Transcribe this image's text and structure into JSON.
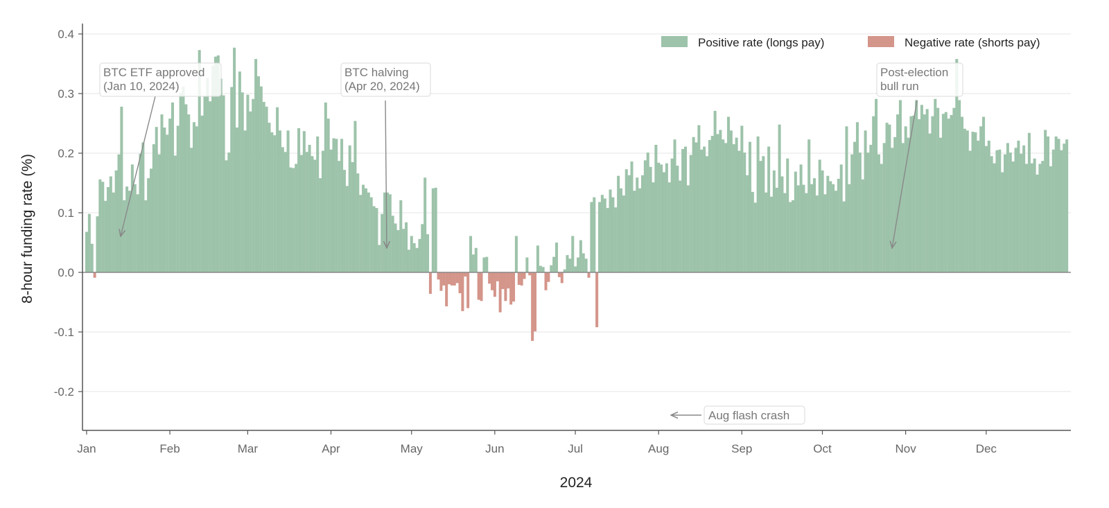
{
  "chart_data": {
    "type": "bar",
    "title": "",
    "xlabel": "2024",
    "ylabel": "8-hour funding rate (%)",
    "ylim": [
      -0.26,
      0.41
    ],
    "yticks": [
      -0.2,
      -0.1,
      0.0,
      0.1,
      0.2,
      0.3,
      0.4
    ],
    "ytick_labels": [
      "-0.2",
      "-0.1",
      "0.0",
      "0.1",
      "0.2",
      "0.3",
      "0.4"
    ],
    "xlim": [
      "2024-01-01",
      "2024-12-31"
    ],
    "xticks": [
      {
        "date": "2024-01-01",
        "label": "Jan"
      },
      {
        "date": "2024-02-01",
        "label": "Feb"
      },
      {
        "date": "2024-03-01",
        "label": "Mar"
      },
      {
        "date": "2024-04-01",
        "label": "Apr"
      },
      {
        "date": "2024-05-01",
        "label": "May"
      },
      {
        "date": "2024-06-01",
        "label": "Jun"
      },
      {
        "date": "2024-07-01",
        "label": "Jul"
      },
      {
        "date": "2024-08-01",
        "label": "Aug"
      },
      {
        "date": "2024-09-01",
        "label": "Sep"
      },
      {
        "date": "2024-10-01",
        "label": "Oct"
      },
      {
        "date": "2024-11-01",
        "label": "Nov"
      },
      {
        "date": "2024-12-01",
        "label": "Dec"
      }
    ],
    "grid": "horizontal",
    "legend_position": "top-right",
    "series": [
      {
        "name": "Positive rate (longs pay)",
        "color": "#9dc3aa"
      },
      {
        "name": "Negative rate (shorts pay)",
        "color": "#d4958a"
      }
    ],
    "segments": [
      {
        "start": "2024-01-01",
        "end": "2024-01-31",
        "values": [
          0.068,
          0.098,
          0.048,
          -0.009,
          0.094,
          0.156,
          0.152,
          0.12,
          0.143,
          0.161,
          0.134,
          0.171,
          0.198,
          0.278,
          0.121,
          0.144,
          0.137,
          0.181,
          0.148,
          0.131,
          0.199,
          0.218,
          0.121,
          0.158,
          0.174,
          0.215,
          0.244,
          0.198,
          0.265,
          0.243,
          0.231
        ]
      },
      {
        "start": "2024-02-01",
        "end": "2024-02-29",
        "values": [
          0.258,
          0.285,
          0.196,
          0.246,
          0.301,
          0.312,
          0.282,
          0.265,
          0.209,
          0.252,
          0.245,
          0.373,
          0.263,
          0.296,
          0.326,
          0.287,
          0.347,
          0.362,
          0.364,
          0.325,
          0.297,
          0.188,
          0.201,
          0.311,
          0.377,
          0.243,
          0.337,
          0.302,
          0.238
        ]
      },
      {
        "start": "2024-03-01",
        "end": "2024-03-31",
        "values": [
          0.298,
          0.27,
          0.291,
          0.358,
          0.329,
          0.312,
          0.286,
          0.278,
          0.251,
          0.235,
          0.23,
          0.277,
          0.238,
          0.21,
          0.202,
          0.238,
          0.176,
          0.175,
          0.182,
          0.242,
          0.197,
          0.237,
          0.202,
          0.214,
          0.195,
          0.189,
          0.228,
          0.158,
          0.204,
          0.285,
          0.258
        ]
      },
      {
        "start": "2024-04-01",
        "end": "2024-04-30",
        "values": [
          0.206,
          0.225,
          0.224,
          0.187,
          0.224,
          0.172,
          0.145,
          0.213,
          0.185,
          0.254,
          0.166,
          0.13,
          0.147,
          0.141,
          0.134,
          0.126,
          0.111,
          0.108,
          0.046,
          0.098,
          0.134,
          0.134,
          0.131,
          0.095,
          0.082,
          0.071,
          0.121,
          0.073,
          0.084,
          0.038
        ]
      },
      {
        "start": "2024-05-01",
        "end": "2024-05-31",
        "values": [
          0.061,
          0.049,
          0.041,
          0.056,
          0.081,
          0.159,
          0.064,
          -0.036,
          0.141,
          0.142,
          -0.012,
          -0.031,
          -0.022,
          -0.057,
          -0.02,
          -0.022,
          -0.022,
          -0.018,
          -0.035,
          -0.065,
          -0.007,
          -0.06,
          0.061,
          0.03,
          0.041,
          -0.046,
          -0.048,
          0.025,
          0.026,
          -0.019,
          -0.03
        ]
      },
      {
        "start": "2024-06-01",
        "end": "2024-06-30",
        "values": [
          -0.041,
          -0.015,
          -0.067,
          -0.028,
          -0.048,
          -0.027,
          -0.054,
          -0.049,
          0.061,
          -0.021,
          -0.022,
          -0.011,
          0.025,
          -0.005,
          -0.115,
          -0.099,
          0.045,
          0.011,
          0.009,
          -0.03,
          -0.016,
          0.012,
          0.026,
          0.05,
          -0.008,
          -0.018,
          0.005,
          0.029,
          0.023,
          0.061
        ]
      },
      {
        "start": "2024-07-01",
        "end": "2024-07-31",
        "values": [
          0.01,
          0.025,
          0.054,
          0.032,
          0.023,
          -0.009,
          0.118,
          0.126,
          -0.092,
          0.118,
          0.13,
          0.124,
          0.108,
          0.139,
          0.126,
          0.109,
          0.162,
          0.141,
          0.129,
          0.173,
          0.163,
          0.186,
          0.137,
          0.159,
          0.141,
          0.163,
          0.188,
          0.201,
          0.177,
          0.151,
          0.214
        ]
      },
      {
        "start": "2024-08-01",
        "end": "2024-08-31",
        "values": [
          0.184,
          0.181,
          0.168,
          0.183,
          0.151,
          0.191,
          0.223,
          0.179,
          0.154,
          0.207,
          0.211,
          0.146,
          0.197,
          0.227,
          0.218,
          0.247,
          0.206,
          0.211,
          0.195,
          0.222,
          0.229,
          0.271,
          0.232,
          0.239,
          0.223,
          0.217,
          0.261,
          0.238,
          0.215,
          0.226,
          0.204
        ]
      },
      {
        "start": "2024-09-01",
        "end": "2024-09-30",
        "values": [
          0.246,
          0.201,
          0.163,
          0.219,
          0.135,
          0.117,
          0.228,
          0.187,
          0.195,
          0.134,
          0.211,
          0.127,
          0.171,
          0.142,
          0.248,
          0.161,
          0.133,
          0.191,
          0.118,
          0.121,
          0.169,
          0.146,
          0.181,
          0.147,
          0.133,
          0.223,
          0.148,
          0.158,
          0.129,
          0.189
        ]
      },
      {
        "start": "2024-10-01",
        "end": "2024-10-31",
        "values": [
          0.171,
          0.131,
          0.162,
          0.153,
          0.148,
          0.137,
          0.157,
          0.181,
          0.119,
          0.245,
          0.148,
          0.198,
          0.219,
          0.252,
          0.201,
          0.156,
          0.238,
          0.201,
          0.214,
          0.262,
          0.291,
          0.198,
          0.182,
          0.217,
          0.251,
          0.248,
          0.209,
          0.227,
          0.265,
          0.289,
          0.217
        ]
      },
      {
        "start": "2024-11-01",
        "end": "2024-11-30",
        "values": [
          0.245,
          0.226,
          0.262,
          0.263,
          0.289,
          0.257,
          0.281,
          0.265,
          0.274,
          0.233,
          0.262,
          0.291,
          0.276,
          0.226,
          0.266,
          0.269,
          0.258,
          0.264,
          0.276,
          0.358,
          0.289,
          0.261,
          0.241,
          0.238,
          0.204,
          0.236,
          0.235,
          0.221,
          0.245,
          0.261
        ]
      },
      {
        "start": "2024-12-01",
        "end": "2024-12-31",
        "values": [
          0.212,
          0.221,
          0.195,
          0.183,
          0.205,
          0.206,
          0.168,
          0.198,
          0.217,
          0.201,
          0.186,
          0.209,
          0.221,
          0.199,
          0.213,
          0.182,
          0.234,
          0.183,
          0.191,
          0.164,
          0.182,
          0.187,
          0.239,
          0.228,
          0.178,
          0.206,
          0.228,
          0.224,
          0.205,
          0.216,
          0.223
        ]
      }
    ],
    "annotations": [
      {
        "text": [
          "BTC ETF approved",
          "(Jan 10, 2024)"
        ],
        "date": "2024-01-10"
      },
      {
        "text": [
          "BTC halving",
          "(Apr 20, 2024)"
        ],
        "date": "2024-04-20"
      },
      {
        "text": [
          "Aug flash crash"
        ],
        "date": "2024-08-05"
      },
      {
        "text": [
          "Post-election",
          "bull run"
        ],
        "date": "2024-11-05"
      }
    ]
  }
}
